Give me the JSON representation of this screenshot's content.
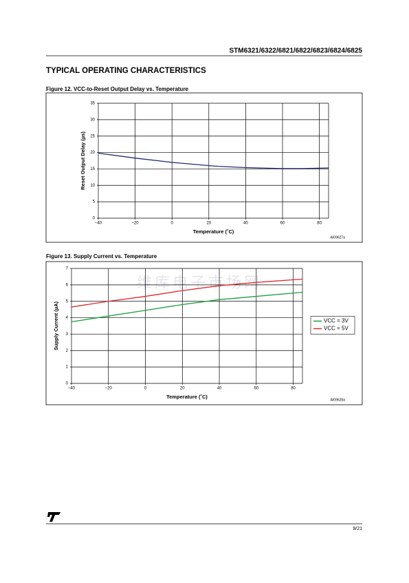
{
  "header": {
    "title": "STM6321/6322/6821/6822/6823/6824/6825"
  },
  "section_title": "TYPICAL OPERATING CHARACTERISTICS",
  "watermark": "维库电子市场网",
  "chart_data": [
    {
      "type": "line",
      "caption": "Figure 12. VCC-to-Reset Output Delay vs. Temperature",
      "x_label": "Temperature (˚C)",
      "y_label": "Reset Output Delay (µs)",
      "annotation": "AI09627a",
      "x": [
        -40,
        -20,
        0,
        20,
        25,
        40,
        60,
        70,
        85
      ],
      "values": [
        19.8,
        18.3,
        17,
        16,
        15.8,
        15.4,
        15.1,
        15.1,
        15.3
      ],
      "color": "#1f2a6e",
      "xlim": [
        -40,
        85
      ],
      "xticks": [
        {
          "value": -40,
          "label": "–40"
        },
        {
          "value": -20,
          "label": "–20"
        },
        0,
        20,
        40,
        60,
        80
      ],
      "ylim": [
        0,
        35
      ],
      "yticks": [
        0,
        5,
        10,
        15,
        20,
        25,
        30,
        35
      ],
      "grid": true
    },
    {
      "type": "line",
      "caption": "Figure 13. Supply Current vs. Temperature",
      "x_label": "Temperature (˚C)",
      "y_label": "Supply Current (µA)",
      "annotation": "AI09628a",
      "x": [
        -40,
        -20,
        0,
        20,
        40,
        60,
        85
      ],
      "series": [
        {
          "name": "VCC = 3V",
          "color": "#1a9e3c",
          "values": [
            3.75,
            4.1,
            4.45,
            4.8,
            5.1,
            5.3,
            5.55
          ]
        },
        {
          "name": "VCC = 5V",
          "color": "#e0262b",
          "values": [
            4.65,
            5.0,
            5.3,
            5.65,
            5.95,
            6.15,
            6.35
          ]
        }
      ],
      "xlim": [
        -40,
        85
      ],
      "xticks": [
        {
          "value": -40,
          "label": "–40"
        },
        {
          "value": -20,
          "label": "–20"
        },
        0,
        20,
        40,
        60,
        80
      ],
      "ylim": [
        0,
        7
      ],
      "yticks": [
        0,
        1,
        2,
        3,
        4,
        5,
        6,
        7
      ],
      "legend": "right",
      "grid": true
    }
  ],
  "footer": {
    "page": "9/21"
  }
}
